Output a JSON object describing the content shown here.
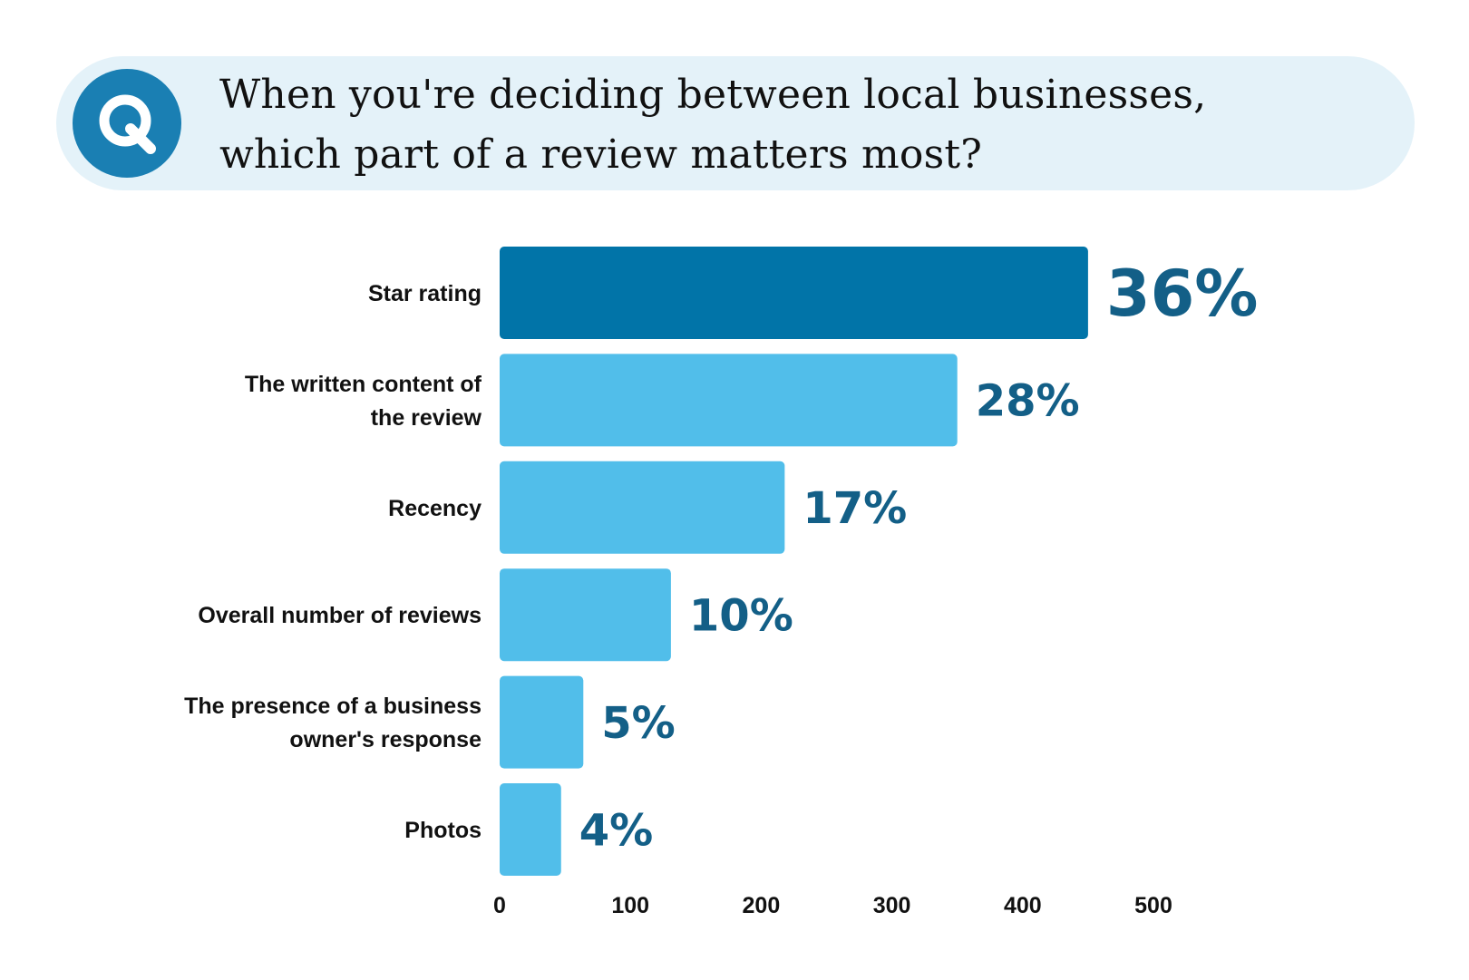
{
  "question": {
    "badge": "Q",
    "line1": "When you're deciding between local businesses,",
    "line2": "which part of a review matters most?"
  },
  "chart_data": {
    "type": "bar",
    "orientation": "horizontal",
    "categories": [
      [
        "Star rating"
      ],
      [
        "The written content of",
        "the review"
      ],
      [
        "Recency"
      ],
      [
        "Overall number of reviews"
      ],
      [
        "The presence of a business",
        "owner's response"
      ],
      [
        "Photos"
      ]
    ],
    "values": [
      450,
      350,
      218,
      131,
      64,
      47
    ],
    "data_labels": [
      "36%",
      "28%",
      "17%",
      "10%",
      "5%",
      "4%"
    ],
    "xlim": [
      0,
      500
    ],
    "x_ticks": [
      0,
      100,
      200,
      300,
      400,
      500
    ],
    "grid": false,
    "colors": {
      "highlight": "#0174a8",
      "bar": "#51beea",
      "label": "#135f87",
      "banner": "#e4f2f9",
      "badge": "#1a7fb3"
    }
  }
}
